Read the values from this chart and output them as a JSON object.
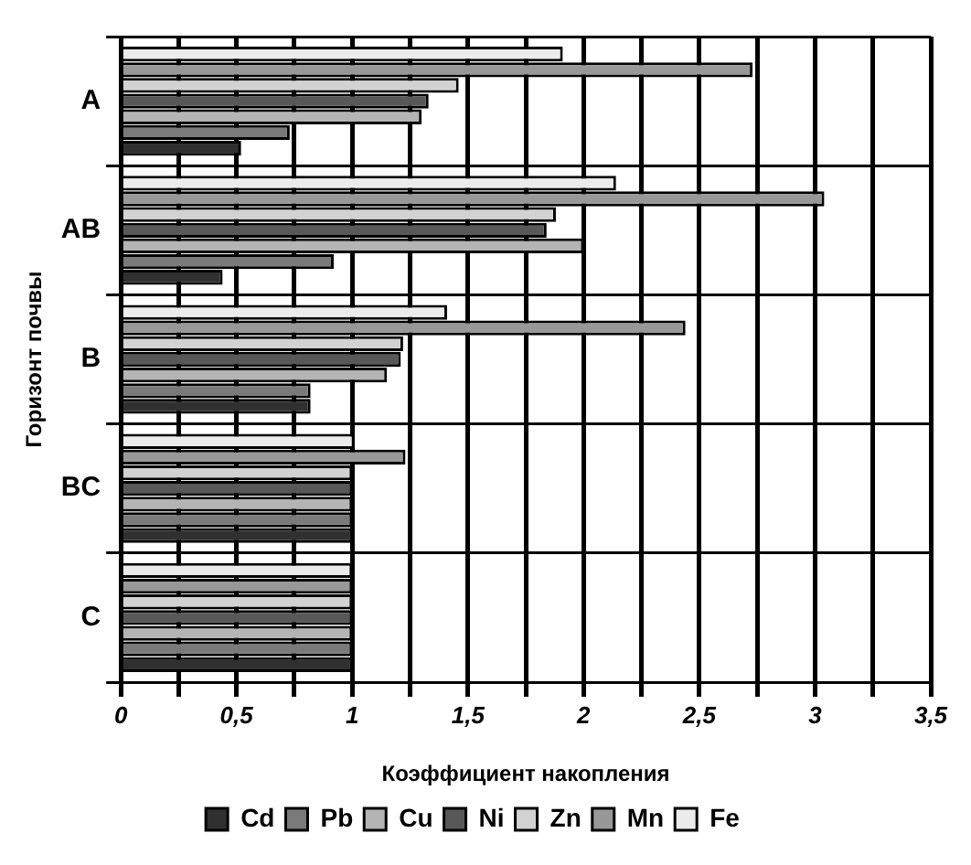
{
  "chart_data": {
    "type": "bar",
    "orientation": "horizontal",
    "xlabel": "Коэффициент накопления",
    "ylabel": "Горизонт почвы",
    "categories": [
      "A",
      "AB",
      "B",
      "BC",
      "C"
    ],
    "series": [
      {
        "name": "Cd",
        "color": "#303030",
        "values": [
          0.52,
          0.44,
          0.82,
          1,
          1
        ]
      },
      {
        "name": "Pb",
        "color": "#7a7a7a",
        "values": [
          0.73,
          0.92,
          0.82,
          1,
          1
        ]
      },
      {
        "name": "Cu",
        "color": "#b4b4b4",
        "values": [
          1.3,
          2.0,
          1.15,
          1,
          1
        ]
      },
      {
        "name": "Ni",
        "color": "#585858",
        "values": [
          1.33,
          1.84,
          1.21,
          1,
          1
        ]
      },
      {
        "name": "Zn",
        "color": "#d2d2d2",
        "values": [
          1.46,
          1.88,
          1.22,
          1,
          1
        ]
      },
      {
        "name": "Mn",
        "color": "#989898",
        "values": [
          2.73,
          3.04,
          2.44,
          1.23,
          1
        ]
      },
      {
        "name": "Fe",
        "color": "#ebebeb",
        "values": [
          1.91,
          2.14,
          1.41,
          1.01,
          1
        ]
      }
    ],
    "xlim": [
      0,
      3.5
    ],
    "xticks": [
      0,
      {
        "value": 0.25,
        "label": null
      },
      {
        "value": 0.5,
        "label": "0,5"
      },
      {
        "value": 0.75,
        "label": null
      },
      1,
      {
        "value": 1.25,
        "label": null
      },
      {
        "value": 1.5,
        "label": "1,5"
      },
      {
        "value": 1.75,
        "label": null
      },
      2,
      {
        "value": 2.25,
        "label": null
      },
      {
        "value": 2.5,
        "label": "2,5"
      },
      {
        "value": 2.75,
        "label": null
      },
      3,
      {
        "value": 3.25,
        "label": null
      },
      {
        "value": 3.5,
        "label": "3,5"
      }
    ],
    "grid": true,
    "legend": "bottom"
  }
}
